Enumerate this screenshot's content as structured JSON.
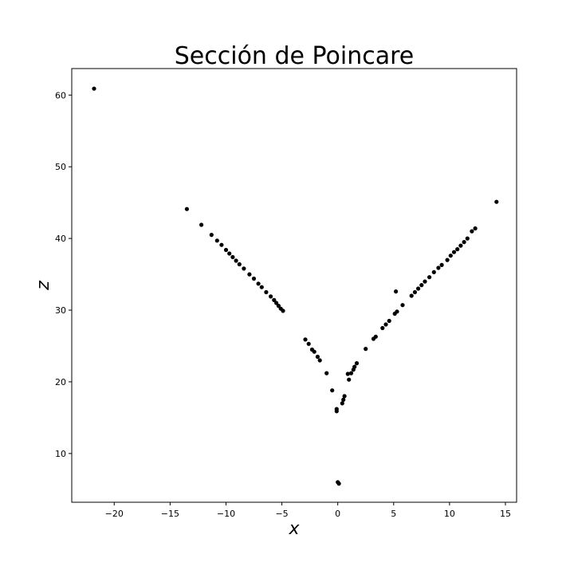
{
  "chart_data": {
    "type": "scatter",
    "title": "Sección de Poincare",
    "xlabel": "x",
    "ylabel": "z",
    "xlim": [
      -23.8,
      16.0
    ],
    "ylim": [
      3.2,
      63.7
    ],
    "xticks": [
      -20,
      -15,
      -10,
      -5,
      0,
      5,
      10,
      15
    ],
    "yticks": [
      10,
      20,
      30,
      40,
      50,
      60
    ],
    "grid": false,
    "marker_color": "#000000",
    "points": [
      {
        "x": -21.8,
        "y": 60.9
      },
      {
        "x": -13.5,
        "y": 44.1
      },
      {
        "x": -12.2,
        "y": 41.9
      },
      {
        "x": -11.3,
        "y": 40.5
      },
      {
        "x": -10.8,
        "y": 39.7
      },
      {
        "x": -10.4,
        "y": 39.1
      },
      {
        "x": -10.0,
        "y": 38.4
      },
      {
        "x": -9.7,
        "y": 37.9
      },
      {
        "x": -9.4,
        "y": 37.4
      },
      {
        "x": -9.1,
        "y": 36.9
      },
      {
        "x": -8.8,
        "y": 36.4
      },
      {
        "x": -8.4,
        "y": 35.8
      },
      {
        "x": -7.9,
        "y": 35.0
      },
      {
        "x": -7.5,
        "y": 34.4
      },
      {
        "x": -7.1,
        "y": 33.7
      },
      {
        "x": -6.8,
        "y": 33.2
      },
      {
        "x": -6.4,
        "y": 32.5
      },
      {
        "x": -6.0,
        "y": 31.9
      },
      {
        "x": -5.7,
        "y": 31.4
      },
      {
        "x": -5.5,
        "y": 31.0
      },
      {
        "x": -5.3,
        "y": 30.6
      },
      {
        "x": -5.1,
        "y": 30.2
      },
      {
        "x": -4.9,
        "y": 29.9
      },
      {
        "x": -2.9,
        "y": 25.9
      },
      {
        "x": -2.6,
        "y": 25.3
      },
      {
        "x": -2.3,
        "y": 24.5
      },
      {
        "x": -2.1,
        "y": 24.2
      },
      {
        "x": -1.8,
        "y": 23.5
      },
      {
        "x": -1.6,
        "y": 23.0
      },
      {
        "x": -1.0,
        "y": 21.2
      },
      {
        "x": -0.5,
        "y": 18.8
      },
      {
        "x": -0.1,
        "y": 16.2
      },
      {
        "x": -0.1,
        "y": 15.9
      },
      {
        "x": 0.0,
        "y": 6.0
      },
      {
        "x": 0.1,
        "y": 5.8
      },
      {
        "x": 0.4,
        "y": 17.0
      },
      {
        "x": 0.5,
        "y": 17.5
      },
      {
        "x": 0.6,
        "y": 18.0
      },
      {
        "x": 0.9,
        "y": 21.1
      },
      {
        "x": 1.0,
        "y": 20.3
      },
      {
        "x": 1.2,
        "y": 21.2
      },
      {
        "x": 1.4,
        "y": 21.7
      },
      {
        "x": 1.5,
        "y": 22.1
      },
      {
        "x": 1.7,
        "y": 22.6
      },
      {
        "x": 2.5,
        "y": 24.6
      },
      {
        "x": 3.2,
        "y": 26.0
      },
      {
        "x": 3.4,
        "y": 26.3
      },
      {
        "x": 4.0,
        "y": 27.5
      },
      {
        "x": 4.3,
        "y": 28.0
      },
      {
        "x": 4.6,
        "y": 28.5
      },
      {
        "x": 5.1,
        "y": 29.5
      },
      {
        "x": 5.3,
        "y": 29.8
      },
      {
        "x": 5.2,
        "y": 32.6
      },
      {
        "x": 5.8,
        "y": 30.7
      },
      {
        "x": 6.6,
        "y": 32.0
      },
      {
        "x": 6.9,
        "y": 32.5
      },
      {
        "x": 7.2,
        "y": 33.0
      },
      {
        "x": 7.5,
        "y": 33.5
      },
      {
        "x": 7.8,
        "y": 34.0
      },
      {
        "x": 8.2,
        "y": 34.6
      },
      {
        "x": 8.6,
        "y": 35.3
      },
      {
        "x": 9.0,
        "y": 35.9
      },
      {
        "x": 9.3,
        "y": 36.3
      },
      {
        "x": 9.8,
        "y": 37.0
      },
      {
        "x": 10.1,
        "y": 37.6
      },
      {
        "x": 10.4,
        "y": 38.1
      },
      {
        "x": 10.7,
        "y": 38.5
      },
      {
        "x": 11.0,
        "y": 39.0
      },
      {
        "x": 11.3,
        "y": 39.5
      },
      {
        "x": 11.6,
        "y": 40.0
      },
      {
        "x": 12.0,
        "y": 41.0
      },
      {
        "x": 12.3,
        "y": 41.4
      },
      {
        "x": 14.2,
        "y": 45.1
      }
    ]
  }
}
